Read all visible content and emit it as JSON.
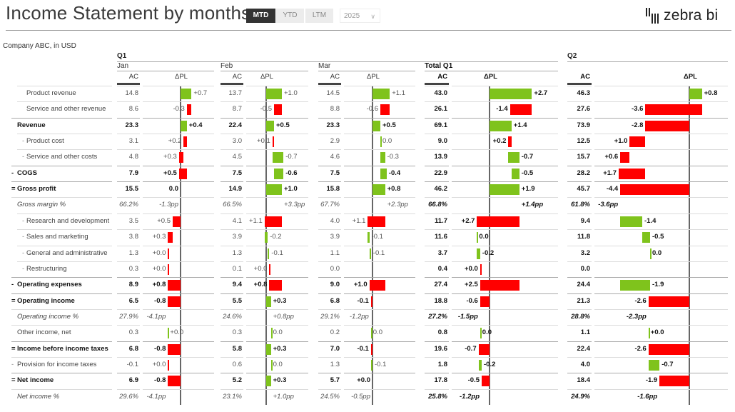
{
  "header": {
    "title": "Income Statement by months",
    "toggles": [
      "MTD",
      "YTD",
      "LTM"
    ],
    "active_toggle": "MTD",
    "year": "2025",
    "logo_text": "zebra bi",
    "subtitle": "Company ABC, in USD"
  },
  "colors": {
    "positive": "#7fc31c",
    "negative": "#ff0000",
    "axis": "#666666"
  },
  "groups": [
    {
      "label": "Q1"
    },
    {
      "label": "Q2"
    }
  ],
  "rows": [
    {
      "label": "Product revenue",
      "prefix": "",
      "style": "item",
      "kind": "rev"
    },
    {
      "label": "Service and other revenue",
      "prefix": "",
      "style": "item",
      "kind": "rev"
    },
    {
      "label": "Revenue",
      "prefix": "",
      "style": "bold",
      "kind": "total"
    },
    {
      "label": "Product cost",
      "prefix": "-",
      "style": "item",
      "kind": "cost"
    },
    {
      "label": "Service and other costs",
      "prefix": "-",
      "style": "item",
      "kind": "cost"
    },
    {
      "label": "COGS",
      "prefix": "-",
      "style": "bold",
      "kind": "costgroup"
    },
    {
      "label": "Gross profit",
      "prefix": "=",
      "style": "bold",
      "kind": "total"
    },
    {
      "label": "Gross margin %",
      "prefix": "",
      "style": "italic",
      "kind": "pct"
    },
    {
      "label": "Research and development",
      "prefix": "-",
      "style": "item",
      "kind": "cost"
    },
    {
      "label": "Sales and marketing",
      "prefix": "-",
      "style": "item",
      "kind": "cost"
    },
    {
      "label": "General and administrative",
      "prefix": "-",
      "style": "item",
      "kind": "cost"
    },
    {
      "label": "Restructuring",
      "prefix": "-",
      "style": "item",
      "kind": "cost"
    },
    {
      "label": "Operating expenses",
      "prefix": "-",
      "style": "bold",
      "kind": "costgroup"
    },
    {
      "label": "Operating income",
      "prefix": "=",
      "style": "bold",
      "kind": "total"
    },
    {
      "label": "Operating income %",
      "prefix": "",
      "style": "italic",
      "kind": "pct"
    },
    {
      "label": "Other income, net",
      "prefix": "",
      "style": "plain",
      "kind": "rev"
    },
    {
      "label": "Income before income taxes",
      "prefix": "=",
      "style": "bold",
      "kind": "total"
    },
    {
      "label": "Provision for income taxes",
      "prefix": "-",
      "style": "plain",
      "kind": "cost"
    },
    {
      "label": "Net income",
      "prefix": "=",
      "style": "bold",
      "kind": "total"
    },
    {
      "label": "Net income %",
      "prefix": "",
      "style": "italic",
      "kind": "pct"
    }
  ],
  "columns": [
    {
      "label": "Jan",
      "group": "Q1",
      "ac_header": "AC",
      "dpl_header": "ΔPL",
      "ac": [
        "14.8",
        "8.6",
        "23.3",
        "3.1",
        "4.8",
        "7.9",
        "15.5",
        "66.2%",
        "3.5",
        "3.8",
        "1.3",
        "0.3",
        "8.9",
        "6.5",
        "27.9%",
        "0.3",
        "6.8",
        "-0.1",
        "6.9",
        "29.6%"
      ],
      "dpl": [
        "+0.7",
        "-0.3",
        "+0.4",
        "+0.2",
        "+0.3",
        "+0.5",
        "0.0",
        "-1.3pp",
        "+0.5",
        "+0.3",
        "+0.0",
        "+0.0",
        "+0.8",
        "-0.8",
        "-4.1pp",
        "+0.0",
        "-0.8",
        "+0.0",
        "-0.8",
        "-4.1pp"
      ]
    },
    {
      "label": "Feb",
      "group": "Q1",
      "ac_header": "AC",
      "dpl_header": "ΔPL",
      "ac": [
        "13.7",
        "8.7",
        "22.4",
        "3.0",
        "4.5",
        "7.5",
        "14.9",
        "66.5%",
        "4.1",
        "3.9",
        "1.3",
        "0.1",
        "9.4",
        "5.5",
        "24.6%",
        "0.3",
        "5.8",
        "0.6",
        "5.2",
        "23.1%"
      ],
      "dpl": [
        "+1.0",
        "-0.5",
        "+0.5",
        "+0.1",
        "-0.7",
        "-0.6",
        "+1.0",
        "+3.3pp",
        "+1.1",
        "-0.2",
        "-0.1",
        "+0.0",
        "+0.8",
        "+0.3",
        "+0.8pp",
        "0.0",
        "+0.3",
        "0.0",
        "+0.3",
        "+1.0pp"
      ]
    },
    {
      "label": "Mar",
      "group": "Q1",
      "ac_header": "AC",
      "dpl_header": "ΔPL",
      "ac": [
        "14.5",
        "8.8",
        "23.3",
        "2.9",
        "4.6",
        "7.5",
        "15.8",
        "67.7%",
        "4.0",
        "3.9",
        "1.1",
        "0.0",
        "9.0",
        "6.8",
        "29.1%",
        "0.2",
        "7.0",
        "1.3",
        "5.7",
        "24.5%"
      ],
      "dpl": [
        "+1.1",
        "-0.6",
        "+0.5",
        "0.0",
        "-0.3",
        "-0.4",
        "+0.8",
        "+2.3pp",
        "+1.1",
        "-0.1",
        "-0.1",
        "",
        "+1.0",
        "-0.1",
        "-1.2pp",
        "0.0",
        "-0.1",
        "-0.1",
        "+0.0",
        "-0.5pp"
      ]
    },
    {
      "label": "Total Q1",
      "group": "Q1",
      "ac_header": "AC",
      "dpl_header": "ΔPL",
      "ac": [
        "43.0",
        "26.1",
        "69.1",
        "9.0",
        "13.9",
        "22.9",
        "46.2",
        "66.8%",
        "11.7",
        "11.6",
        "3.7",
        "0.4",
        "27.4",
        "18.8",
        "27.2%",
        "0.8",
        "19.6",
        "1.8",
        "17.8",
        "25.8%"
      ],
      "dpl": [
        "+2.7",
        "-1.4",
        "+1.4",
        "+0.2",
        "-0.7",
        "-0.5",
        "+1.9",
        "+1.4pp",
        "+2.7",
        "0.0",
        "-0.2",
        "+0.0",
        "+2.5",
        "-0.6",
        "-1.5pp",
        "0.0",
        "-0.7",
        "-0.2",
        "-0.5",
        "-1.2pp"
      ]
    },
    {
      "label": "",
      "group": "Q2",
      "ac_header": "AC",
      "dpl_header": "ΔPL",
      "ac": [
        "46.3",
        "27.6",
        "73.9",
        "12.5",
        "15.7",
        "28.2",
        "45.7",
        "61.8%",
        "9.4",
        "11.8",
        "3.2",
        "0.0",
        "24.4",
        "21.3",
        "28.8%",
        "1.1",
        "22.4",
        "4.0",
        "18.4",
        "24.9%"
      ],
      "dpl": [
        "+0.8",
        "-3.6",
        "-2.8",
        "+1.0",
        "+0.6",
        "+1.7",
        "-4.4",
        "-3.6pp",
        "-1.4",
        "-0.5",
        "0.0",
        "",
        "-1.9",
        "-2.6",
        "-2.3pp",
        "+0.0",
        "-2.6",
        "-0.7",
        "-1.9",
        "-1.6pp"
      ]
    }
  ]
}
